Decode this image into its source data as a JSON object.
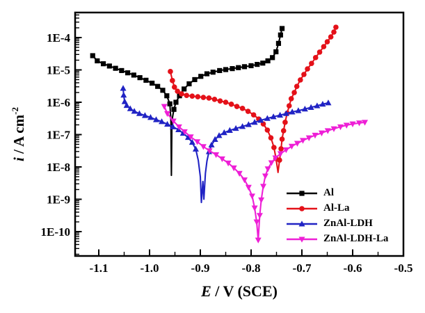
{
  "chart_data": {
    "type": "line",
    "title": "",
    "x_axis": {
      "title_var": "E",
      "title_rest": " / V (SCE)",
      "range": [
        -1.147,
        -0.5
      ],
      "ticks": [
        -1.1,
        -1.0,
        -0.9,
        -0.8,
        -0.7,
        -0.6,
        -0.5
      ],
      "tick_labels": [
        "-1.1",
        "-1.0",
        "-0.9",
        "-0.8",
        "-0.7",
        "-0.6",
        "-0.5"
      ],
      "minor_ticks": [
        -1.05,
        -0.95,
        -0.85,
        -0.75,
        -0.65,
        -0.55
      ]
    },
    "y_axis": {
      "title_var": "i",
      "title_mid": " / A cm",
      "title_sup": "-2",
      "scale": "log",
      "range_log": [
        -10.75,
        -3.23
      ],
      "tick_logs": [
        -4,
        -5,
        -6,
        -7,
        -8,
        -9,
        -10
      ],
      "tick_labels": [
        "1E-4",
        "1E-5",
        "1E-6",
        "1E-7",
        "1E-8",
        "1E-9",
        "1E-10"
      ],
      "grid": false
    },
    "legend": {
      "position": "lower-right"
    },
    "series": [
      {
        "name": "Al",
        "color": "#000000",
        "marker": "square",
        "marker_min_log": -6.45,
        "points": [
          [
            -1.112,
            -4.56
          ],
          [
            -1.103,
            -4.72
          ],
          [
            -1.091,
            -4.81
          ],
          [
            -1.079,
            -4.88
          ],
          [
            -1.067,
            -4.95
          ],
          [
            -1.055,
            -5.02
          ],
          [
            -1.043,
            -5.09
          ],
          [
            -1.031,
            -5.16
          ],
          [
            -1.019,
            -5.24
          ],
          [
            -1.007,
            -5.32
          ],
          [
            -0.995,
            -5.41
          ],
          [
            -0.984,
            -5.51
          ],
          [
            -0.974,
            -5.63
          ],
          [
            -0.966,
            -5.8
          ],
          [
            -0.96,
            -6.05
          ],
          [
            -0.958,
            -6.55
          ],
          [
            -0.957,
            -8.26
          ],
          [
            -0.956,
            -6.7
          ],
          [
            -0.955,
            -6.48
          ],
          [
            -0.952,
            -6.22
          ],
          [
            -0.948,
            -6.0
          ],
          [
            -0.941,
            -5.8
          ],
          [
            -0.932,
            -5.59
          ],
          [
            -0.922,
            -5.43
          ],
          [
            -0.911,
            -5.3
          ],
          [
            -0.899,
            -5.2
          ],
          [
            -0.887,
            -5.12
          ],
          [
            -0.875,
            -5.07
          ],
          [
            -0.862,
            -5.02
          ],
          [
            -0.85,
            -4.99
          ],
          [
            -0.837,
            -4.96
          ],
          [
            -0.825,
            -4.93
          ],
          [
            -0.813,
            -4.9
          ],
          [
            -0.8,
            -4.87
          ],
          [
            -0.788,
            -4.83
          ],
          [
            -0.777,
            -4.79
          ],
          [
            -0.767,
            -4.72
          ],
          [
            -0.758,
            -4.62
          ],
          [
            -0.751,
            -4.44
          ],
          [
            -0.746,
            -4.18
          ],
          [
            -0.742,
            -3.92
          ],
          [
            -0.739,
            -3.72
          ]
        ]
      },
      {
        "name": "Al-La",
        "color": "#e41119",
        "marker": "circle",
        "marker_min_log": -7.9,
        "points": [
          [
            -0.959,
            -5.05
          ],
          [
            -0.955,
            -5.33
          ],
          [
            -0.951,
            -5.53
          ],
          [
            -0.945,
            -5.66
          ],
          [
            -0.937,
            -5.74
          ],
          [
            -0.927,
            -5.79
          ],
          [
            -0.916,
            -5.81
          ],
          [
            -0.905,
            -5.83
          ],
          [
            -0.894,
            -5.85
          ],
          [
            -0.883,
            -5.87
          ],
          [
            -0.872,
            -5.91
          ],
          [
            -0.861,
            -5.96
          ],
          [
            -0.85,
            -6.0
          ],
          [
            -0.839,
            -6.06
          ],
          [
            -0.828,
            -6.13
          ],
          [
            -0.817,
            -6.19
          ],
          [
            -0.806,
            -6.28
          ],
          [
            -0.795,
            -6.39
          ],
          [
            -0.785,
            -6.52
          ],
          [
            -0.776,
            -6.67
          ],
          [
            -0.768,
            -6.86
          ],
          [
            -0.761,
            -7.1
          ],
          [
            -0.755,
            -7.4
          ],
          [
            -0.751,
            -7.74
          ],
          [
            -0.747,
            -8.17
          ],
          [
            -0.744,
            -7.79
          ],
          [
            -0.741,
            -7.44
          ],
          [
            -0.739,
            -7.14
          ],
          [
            -0.736,
            -6.88
          ],
          [
            -0.733,
            -6.62
          ],
          [
            -0.729,
            -6.34
          ],
          [
            -0.725,
            -6.11
          ],
          [
            -0.721,
            -5.89
          ],
          [
            -0.715,
            -5.7
          ],
          [
            -0.71,
            -5.51
          ],
          [
            -0.703,
            -5.31
          ],
          [
            -0.696,
            -5.14
          ],
          [
            -0.689,
            -4.97
          ],
          [
            -0.681,
            -4.8
          ],
          [
            -0.673,
            -4.62
          ],
          [
            -0.665,
            -4.45
          ],
          [
            -0.657,
            -4.28
          ],
          [
            -0.65,
            -4.13
          ],
          [
            -0.643,
            -3.98
          ],
          [
            -0.637,
            -3.83
          ],
          [
            -0.633,
            -3.68
          ]
        ]
      },
      {
        "name": "ZnAl-LDH",
        "color": "#2023c4",
        "marker": "triangle-up",
        "marker_min_log": -7.6,
        "points": [
          [
            -1.052,
            -5.57
          ],
          [
            -1.051,
            -5.78
          ],
          [
            -1.049,
            -5.98
          ],
          [
            -1.045,
            -6.1
          ],
          [
            -1.038,
            -6.2
          ],
          [
            -1.03,
            -6.28
          ],
          [
            -1.02,
            -6.35
          ],
          [
            -1.009,
            -6.41
          ],
          [
            -0.998,
            -6.47
          ],
          [
            -0.987,
            -6.54
          ],
          [
            -0.976,
            -6.6
          ],
          [
            -0.965,
            -6.68
          ],
          [
            -0.954,
            -6.76
          ],
          [
            -0.943,
            -6.85
          ],
          [
            -0.934,
            -6.96
          ],
          [
            -0.924,
            -7.09
          ],
          [
            -0.916,
            -7.24
          ],
          [
            -0.909,
            -7.45
          ],
          [
            -0.904,
            -7.8
          ],
          [
            -0.9,
            -8.3
          ],
          [
            -0.898,
            -9.1
          ],
          [
            -0.895,
            -8.45
          ],
          [
            -0.893,
            -9.0
          ],
          [
            -0.89,
            -8.2
          ],
          [
            -0.887,
            -7.82
          ],
          [
            -0.883,
            -7.53
          ],
          [
            -0.878,
            -7.32
          ],
          [
            -0.871,
            -7.15
          ],
          [
            -0.863,
            -7.03
          ],
          [
            -0.853,
            -6.94
          ],
          [
            -0.842,
            -6.87
          ],
          [
            -0.83,
            -6.81
          ],
          [
            -0.817,
            -6.75
          ],
          [
            -0.805,
            -6.69
          ],
          [
            -0.793,
            -6.62
          ],
          [
            -0.781,
            -6.56
          ],
          [
            -0.768,
            -6.5
          ],
          [
            -0.756,
            -6.45
          ],
          [
            -0.743,
            -6.4
          ],
          [
            -0.731,
            -6.35
          ],
          [
            -0.719,
            -6.3
          ],
          [
            -0.707,
            -6.26
          ],
          [
            -0.694,
            -6.21
          ],
          [
            -0.682,
            -6.16
          ],
          [
            -0.67,
            -6.11
          ],
          [
            -0.659,
            -6.06
          ],
          [
            -0.648,
            -6.02
          ]
        ]
      },
      {
        "name": "ZnAl-LDH-La",
        "color": "#ee1fd6",
        "marker": "triangle-down",
        "marker_min_log": -10.6,
        "points": [
          [
            -0.971,
            -6.13
          ],
          [
            -0.965,
            -6.35
          ],
          [
            -0.953,
            -6.58
          ],
          [
            -0.942,
            -6.76
          ],
          [
            -0.931,
            -6.91
          ],
          [
            -0.919,
            -7.07
          ],
          [
            -0.906,
            -7.22
          ],
          [
            -0.894,
            -7.37
          ],
          [
            -0.882,
            -7.5
          ],
          [
            -0.869,
            -7.62
          ],
          [
            -0.857,
            -7.75
          ],
          [
            -0.845,
            -7.88
          ],
          [
            -0.834,
            -8.03
          ],
          [
            -0.823,
            -8.2
          ],
          [
            -0.813,
            -8.4
          ],
          [
            -0.805,
            -8.63
          ],
          [
            -0.798,
            -8.9
          ],
          [
            -0.793,
            -9.27
          ],
          [
            -0.789,
            -9.7
          ],
          [
            -0.786,
            -10.26
          ],
          [
            -0.783,
            -9.5
          ],
          [
            -0.78,
            -9.02
          ],
          [
            -0.776,
            -8.6
          ],
          [
            -0.772,
            -8.28
          ],
          [
            -0.767,
            -8.06
          ],
          [
            -0.76,
            -7.87
          ],
          [
            -0.752,
            -7.72
          ],
          [
            -0.742,
            -7.59
          ],
          [
            -0.731,
            -7.47
          ],
          [
            -0.72,
            -7.36
          ],
          [
            -0.709,
            -7.27
          ],
          [
            -0.698,
            -7.18
          ],
          [
            -0.686,
            -7.1
          ],
          [
            -0.674,
            -7.02
          ],
          [
            -0.661,
            -6.95
          ],
          [
            -0.649,
            -6.88
          ],
          [
            -0.637,
            -6.82
          ],
          [
            -0.624,
            -6.76
          ],
          [
            -0.612,
            -6.71
          ],
          [
            -0.6,
            -6.67
          ],
          [
            -0.587,
            -6.64
          ],
          [
            -0.576,
            -6.62
          ]
        ]
      }
    ]
  }
}
